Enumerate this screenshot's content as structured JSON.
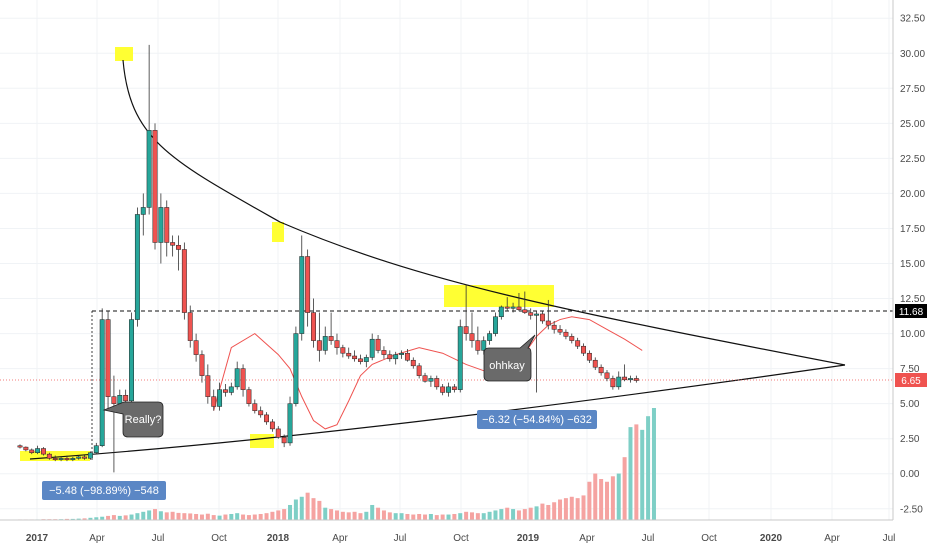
{
  "chart_data": {
    "type": "candlestick",
    "timeframe": "weekly",
    "y_axis": {
      "ticks": [
        "32.50",
        "30.00",
        "27.50",
        "25.00",
        "22.50",
        "20.00",
        "17.50",
        "15.00",
        "12.50",
        "10.00",
        "7.50",
        "5.00",
        "2.50",
        "0.00",
        "-2.50"
      ],
      "ylim": [
        -3.3,
        33.8
      ]
    },
    "x_axis": {
      "ticks": [
        "2017",
        "Apr",
        "Jul",
        "Oct",
        "2018",
        "Apr",
        "Jul",
        "Oct",
        "2019",
        "Apr",
        "Jul",
        "Oct",
        "2020",
        "Apr",
        "Jul"
      ]
    },
    "price_labels": {
      "resistance": "11.68",
      "last": "6.65"
    },
    "callouts": {
      "really": "Really?",
      "ohhkay": "ohhkay"
    },
    "measures": {
      "drop_2017": "−5.48 (−98.89%) −548",
      "drop_2019": "−6.32 (−54.84%) −632"
    },
    "colors": {
      "up": "#26a69a",
      "down": "#ef5350",
      "ma": "#ef5350",
      "highlight": "#ffff33",
      "measure": "#5b87c5"
    },
    "candles": [
      {
        "o": 2.0,
        "h": 2.1,
        "l": 1.8,
        "c": 1.9
      },
      {
        "o": 1.9,
        "h": 1.95,
        "l": 1.6,
        "c": 1.7
      },
      {
        "o": 1.7,
        "h": 1.8,
        "l": 1.4,
        "c": 1.5
      },
      {
        "o": 1.5,
        "h": 2.0,
        "l": 1.4,
        "c": 1.8
      },
      {
        "o": 1.8,
        "h": 1.9,
        "l": 1.3,
        "c": 1.4
      },
      {
        "o": 1.4,
        "h": 1.5,
        "l": 1.0,
        "c": 1.1
      },
      {
        "o": 1.1,
        "h": 1.3,
        "l": 0.9,
        "c": 1.0
      },
      {
        "o": 1.0,
        "h": 1.2,
        "l": 0.9,
        "c": 1.1
      },
      {
        "o": 1.1,
        "h": 1.3,
        "l": 0.9,
        "c": 1.0
      },
      {
        "o": 1.0,
        "h": 1.2,
        "l": 0.9,
        "c": 1.1
      },
      {
        "o": 1.1,
        "h": 1.3,
        "l": 1.0,
        "c": 1.2
      },
      {
        "o": 1.2,
        "h": 1.3,
        "l": 1.0,
        "c": 1.1
      },
      {
        "o": 1.1,
        "h": 1.6,
        "l": 1.0,
        "c": 1.5
      },
      {
        "o": 1.5,
        "h": 2.2,
        "l": 1.4,
        "c": 2.0
      },
      {
        "o": 2.0,
        "h": 11.8,
        "l": 1.9,
        "c": 11.0
      },
      {
        "o": 11.0,
        "h": 11.6,
        "l": 4.5,
        "c": 5.5
      },
      {
        "o": 5.5,
        "h": 7.0,
        "l": 0.1,
        "c": 5.0
      },
      {
        "o": 5.0,
        "h": 6.0,
        "l": 4.5,
        "c": 5.6
      },
      {
        "o": 5.6,
        "h": 6.0,
        "l": 4.8,
        "c": 5.2
      },
      {
        "o": 5.2,
        "h": 11.5,
        "l": 5.0,
        "c": 11.0
      },
      {
        "o": 11.0,
        "h": 19.0,
        "l": 10.5,
        "c": 18.5
      },
      {
        "o": 18.5,
        "h": 20.0,
        "l": 17.0,
        "c": 19.0
      },
      {
        "o": 19.0,
        "h": 30.6,
        "l": 18.5,
        "c": 24.5
      },
      {
        "o": 24.5,
        "h": 25.0,
        "l": 16.0,
        "c": 16.5
      },
      {
        "o": 16.5,
        "h": 20.0,
        "l": 15.0,
        "c": 19.0
      },
      {
        "o": 19.0,
        "h": 19.5,
        "l": 15.5,
        "c": 16.5
      },
      {
        "o": 16.5,
        "h": 17.0,
        "l": 15.5,
        "c": 16.3
      },
      {
        "o": 16.3,
        "h": 17.0,
        "l": 14.5,
        "c": 16.0
      },
      {
        "o": 16.0,
        "h": 16.5,
        "l": 11.0,
        "c": 11.5
      },
      {
        "o": 11.5,
        "h": 12.0,
        "l": 9.0,
        "c": 9.5
      },
      {
        "o": 9.5,
        "h": 10.0,
        "l": 8.0,
        "c": 8.5
      },
      {
        "o": 8.5,
        "h": 8.8,
        "l": 6.5,
        "c": 7.0
      },
      {
        "o": 7.0,
        "h": 7.8,
        "l": 5.0,
        "c": 5.5
      },
      {
        "o": 5.5,
        "h": 6.0,
        "l": 4.5,
        "c": 4.8
      },
      {
        "o": 4.8,
        "h": 6.5,
        "l": 4.5,
        "c": 6.0
      },
      {
        "o": 6.0,
        "h": 6.4,
        "l": 5.5,
        "c": 5.8
      },
      {
        "o": 5.8,
        "h": 6.5,
        "l": 5.6,
        "c": 6.2
      },
      {
        "o": 6.2,
        "h": 8.0,
        "l": 6.0,
        "c": 7.5
      },
      {
        "o": 7.5,
        "h": 7.8,
        "l": 5.5,
        "c": 6.0
      },
      {
        "o": 6.0,
        "h": 6.2,
        "l": 4.8,
        "c": 5.0
      },
      {
        "o": 5.0,
        "h": 5.3,
        "l": 4.3,
        "c": 4.5
      },
      {
        "o": 4.5,
        "h": 4.8,
        "l": 4.0,
        "c": 4.2
      },
      {
        "o": 4.2,
        "h": 4.4,
        "l": 3.5,
        "c": 3.7
      },
      {
        "o": 3.7,
        "h": 3.9,
        "l": 3.0,
        "c": 3.2
      },
      {
        "o": 3.2,
        "h": 3.4,
        "l": 2.5,
        "c": 2.6
      },
      {
        "o": 2.6,
        "h": 2.8,
        "l": 1.9,
        "c": 2.2
      },
      {
        "o": 2.2,
        "h": 5.5,
        "l": 2.0,
        "c": 5.0
      },
      {
        "o": 5.0,
        "h": 10.5,
        "l": 4.8,
        "c": 10.0
      },
      {
        "o": 10.0,
        "h": 17.0,
        "l": 9.5,
        "c": 15.5
      },
      {
        "o": 15.5,
        "h": 16.0,
        "l": 10.5,
        "c": 11.5
      },
      {
        "o": 11.5,
        "h": 12.5,
        "l": 9.0,
        "c": 9.5
      },
      {
        "o": 9.5,
        "h": 11.5,
        "l": 8.0,
        "c": 8.8
      },
      {
        "o": 8.8,
        "h": 10.5,
        "l": 8.5,
        "c": 9.8
      },
      {
        "o": 9.8,
        "h": 11.5,
        "l": 9.2,
        "c": 9.5
      },
      {
        "o": 9.5,
        "h": 10.0,
        "l": 8.5,
        "c": 9.0
      },
      {
        "o": 9.0,
        "h": 9.2,
        "l": 8.3,
        "c": 8.6
      },
      {
        "o": 8.6,
        "h": 9.0,
        "l": 8.2,
        "c": 8.4
      },
      {
        "o": 8.4,
        "h": 8.8,
        "l": 8.0,
        "c": 8.2
      },
      {
        "o": 8.2,
        "h": 8.5,
        "l": 7.8,
        "c": 8.0
      },
      {
        "o": 8.0,
        "h": 8.5,
        "l": 7.6,
        "c": 8.3
      },
      {
        "o": 8.3,
        "h": 10.0,
        "l": 8.1,
        "c": 9.6
      },
      {
        "o": 9.6,
        "h": 9.9,
        "l": 8.6,
        "c": 8.8
      },
      {
        "o": 8.8,
        "h": 9.1,
        "l": 8.2,
        "c": 8.5
      },
      {
        "o": 8.5,
        "h": 8.8,
        "l": 8.0,
        "c": 8.2
      },
      {
        "o": 8.2,
        "h": 8.7,
        "l": 7.8,
        "c": 8.5
      },
      {
        "o": 8.5,
        "h": 8.8,
        "l": 8.2,
        "c": 8.6
      },
      {
        "o": 8.6,
        "h": 8.9,
        "l": 8.0,
        "c": 8.1
      },
      {
        "o": 8.1,
        "h": 8.3,
        "l": 7.5,
        "c": 7.7
      },
      {
        "o": 7.7,
        "h": 7.9,
        "l": 6.8,
        "c": 7.0
      },
      {
        "o": 7.0,
        "h": 7.2,
        "l": 6.5,
        "c": 6.6
      },
      {
        "o": 6.6,
        "h": 7.0,
        "l": 6.2,
        "c": 6.8
      },
      {
        "o": 6.8,
        "h": 7.0,
        "l": 6.0,
        "c": 6.2
      },
      {
        "o": 6.2,
        "h": 6.4,
        "l": 5.6,
        "c": 5.8
      },
      {
        "o": 5.8,
        "h": 6.5,
        "l": 5.5,
        "c": 6.2
      },
      {
        "o": 6.2,
        "h": 6.4,
        "l": 5.8,
        "c": 6.0
      },
      {
        "o": 6.0,
        "h": 11.0,
        "l": 5.8,
        "c": 10.5
      },
      {
        "o": 10.5,
        "h": 13.5,
        "l": 9.5,
        "c": 10.0
      },
      {
        "o": 10.0,
        "h": 11.5,
        "l": 9.0,
        "c": 9.5
      },
      {
        "o": 9.5,
        "h": 10.5,
        "l": 8.5,
        "c": 8.8
      },
      {
        "o": 8.8,
        "h": 9.8,
        "l": 8.5,
        "c": 9.5
      },
      {
        "o": 9.5,
        "h": 10.2,
        "l": 9.2,
        "c": 10.0
      },
      {
        "o": 10.0,
        "h": 11.5,
        "l": 9.8,
        "c": 11.2
      },
      {
        "o": 11.2,
        "h": 12.0,
        "l": 11.0,
        "c": 11.9
      },
      {
        "o": 11.9,
        "h": 12.6,
        "l": 11.6,
        "c": 11.8
      },
      {
        "o": 11.8,
        "h": 12.2,
        "l": 11.5,
        "c": 11.9
      },
      {
        "o": 11.9,
        "h": 12.9,
        "l": 11.6,
        "c": 11.7
      },
      {
        "o": 11.7,
        "h": 13.0,
        "l": 11.4,
        "c": 11.5
      },
      {
        "o": 11.5,
        "h": 11.8,
        "l": 11.0,
        "c": 11.3
      },
      {
        "o": 11.3,
        "h": 11.6,
        "l": 5.8,
        "c": 11.4
      },
      {
        "o": 11.4,
        "h": 11.6,
        "l": 10.7,
        "c": 10.9
      },
      {
        "o": 10.9,
        "h": 12.4,
        "l": 10.3,
        "c": 10.6
      },
      {
        "o": 10.6,
        "h": 10.9,
        "l": 10.0,
        "c": 10.3
      },
      {
        "o": 10.3,
        "h": 10.6,
        "l": 9.9,
        "c": 10.1
      },
      {
        "o": 10.1,
        "h": 10.3,
        "l": 9.6,
        "c": 9.8
      },
      {
        "o": 9.8,
        "h": 10.0,
        "l": 9.3,
        "c": 9.5
      },
      {
        "o": 9.5,
        "h": 9.7,
        "l": 8.9,
        "c": 9.1
      },
      {
        "o": 9.1,
        "h": 9.3,
        "l": 8.4,
        "c": 8.6
      },
      {
        "o": 8.6,
        "h": 8.8,
        "l": 7.9,
        "c": 8.1
      },
      {
        "o": 8.1,
        "h": 8.3,
        "l": 7.4,
        "c": 7.6
      },
      {
        "o": 7.6,
        "h": 7.8,
        "l": 7.0,
        "c": 7.2
      },
      {
        "o": 7.2,
        "h": 7.4,
        "l": 6.6,
        "c": 6.8
      },
      {
        "o": 6.8,
        "h": 7.0,
        "l": 6.0,
        "c": 6.2
      },
      {
        "o": 6.2,
        "h": 7.3,
        "l": 6.0,
        "c": 6.9
      },
      {
        "o": 6.9,
        "h": 7.8,
        "l": 6.6,
        "c": 6.7
      },
      {
        "o": 6.7,
        "h": 7.0,
        "l": 6.5,
        "c": 6.8
      },
      {
        "o": 6.8,
        "h": 7.0,
        "l": 6.5,
        "c": 6.65
      }
    ],
    "volumes": [
      0.02,
      0.02,
      0.02,
      0.02,
      0.03,
      0.03,
      0.03,
      0.03,
      0.04,
      0.04,
      0.05,
      0.06,
      0.08,
      0.1,
      0.12,
      0.15,
      0.18,
      0.15,
      0.17,
      0.2,
      0.25,
      0.3,
      0.35,
      0.4,
      0.32,
      0.28,
      0.3,
      0.26,
      0.25,
      0.24,
      0.22,
      0.2,
      0.23,
      0.18,
      0.16,
      0.2,
      0.22,
      0.25,
      0.2,
      0.18,
      0.2,
      0.22,
      0.25,
      0.3,
      0.35,
      0.4,
      0.55,
      0.75,
      0.85,
      1.0,
      0.8,
      0.7,
      0.45,
      0.4,
      0.35,
      0.3,
      0.28,
      0.3,
      0.25,
      0.3,
      0.55,
      0.45,
      0.35,
      0.28,
      0.25,
      0.25,
      0.22,
      0.2,
      0.22,
      0.2,
      0.22,
      0.18,
      0.2,
      0.2,
      0.22,
      0.25,
      0.3,
      0.28,
      0.25,
      0.25,
      0.3,
      0.35,
      0.4,
      0.45,
      0.4,
      0.35,
      0.4,
      0.45,
      0.5,
      0.6,
      0.55,
      0.65,
      0.75,
      0.8,
      0.85,
      0.8,
      0.9,
      1.4,
      1.7,
      1.5,
      1.4,
      1.6,
      1.7,
      2.3,
      3.4,
      3.5,
      3.3,
      3.8,
      4.1
    ],
    "ma_line": [
      [
        33,
        4.5
      ],
      [
        36,
        9
      ],
      [
        40,
        10
      ],
      [
        44,
        8.5
      ],
      [
        46,
        7.5
      ],
      [
        48,
        5.5
      ],
      [
        50,
        3.8
      ],
      [
        52,
        3.2
      ],
      [
        54,
        3.5
      ],
      [
        56,
        5.2
      ],
      [
        58,
        7.0
      ],
      [
        60,
        7.8
      ],
      [
        64,
        8.5
      ],
      [
        68,
        9.0
      ],
      [
        72,
        8.6
      ],
      [
        76,
        7.8
      ],
      [
        80,
        7.2
      ],
      [
        82,
        7.0
      ],
      [
        84,
        7.6
      ],
      [
        86,
        8.6
      ],
      [
        88,
        9.8
      ],
      [
        90,
        10.6
      ],
      [
        92,
        11.0
      ],
      [
        94,
        11.2
      ],
      [
        97,
        11.0
      ],
      [
        100,
        10.3
      ],
      [
        103,
        9.6
      ],
      [
        106,
        8.8
      ]
    ],
    "resistance": 11.68,
    "last_price": 6.65
  }
}
